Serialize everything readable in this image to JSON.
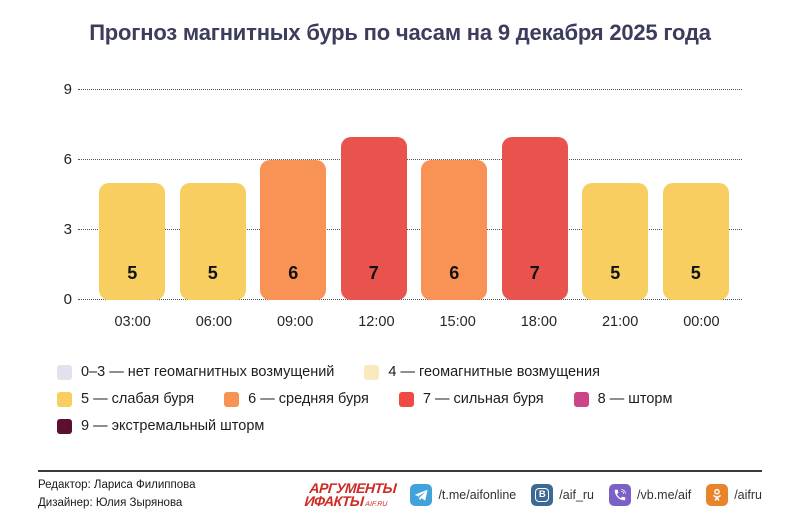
{
  "title": "Прогноз магнитных бурь по часам на 9 декабря 2025 года",
  "chart_data": {
    "type": "bar",
    "title": "Прогноз магнитных бурь по часам на 9 декабря 2025 года",
    "categories": [
      "03:00",
      "06:00",
      "09:00",
      "12:00",
      "15:00",
      "18:00",
      "21:00",
      "00:00"
    ],
    "values": [
      5,
      5,
      6,
      7,
      6,
      7,
      5,
      5
    ],
    "xlabel": "",
    "ylabel": "",
    "ylim": [
      0,
      9
    ],
    "yticks": [
      0,
      3,
      6,
      9
    ],
    "grid": "horizontal-dotted",
    "legend_position": "bottom",
    "palette_by_value": {
      "5": "#F7CE5F",
      "6": "#F99355",
      "7": "#E9534E"
    }
  },
  "legend": {
    "rows": [
      [
        {
          "label": "0–3 — нет геомагнитных возмущений",
          "color": "#E2E2EF"
        },
        {
          "label": "4 — геомагнитные возмущения",
          "color": "#FAE9BE"
        }
      ],
      [
        {
          "label": "5 — слабая буря",
          "color": "#F7CE5F"
        },
        {
          "label": "6 — средняя буря",
          "color": "#F99355"
        },
        {
          "label": "7 — сильная буря",
          "color": "#EF4A44"
        },
        {
          "label": "8 — шторм",
          "color": "#CC4687"
        }
      ],
      [
        {
          "label": "9 — экстремальный шторм",
          "color": "#5C0E33"
        }
      ]
    ]
  },
  "footer": {
    "editor": "Редактор: Лариса Филиппова",
    "designer": "Дизайнер: Юлия Зырянова",
    "logo": {
      "line1": "АРГУМЕНТЫ",
      "line2": "ИФАКТЫ",
      "suffix": "AIF.RU",
      "color": "#CE2A24"
    },
    "socials": [
      {
        "icon": "telegram-icon",
        "handle": "/t.me/aifonline",
        "color": "#41A3DB"
      },
      {
        "icon": "vk-icon",
        "handle": "/aif_ru",
        "color": "#3D6A94"
      },
      {
        "icon": "viber-icon",
        "handle": "/vb.me/aif",
        "color": "#7B60C8"
      },
      {
        "icon": "ok-icon",
        "handle": "/aifru",
        "color": "#E8842C"
      }
    ]
  },
  "colors": {
    "title_text": "#3C3C5C",
    "grid": "#555555",
    "bar_label": "#121212"
  }
}
